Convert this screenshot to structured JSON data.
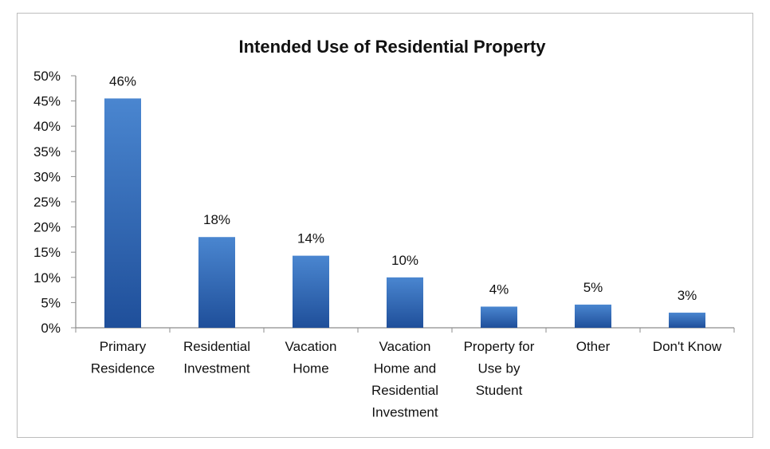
{
  "chart_data": {
    "type": "bar",
    "title": "Intended Use of Residential Property",
    "xlabel": "",
    "ylabel": "",
    "categories": [
      [
        "Primary",
        "Residence"
      ],
      [
        "Residential",
        "Investment"
      ],
      [
        "Vacation",
        "Home"
      ],
      [
        "Vacation",
        "Home and",
        "Residential",
        "Investment"
      ],
      [
        "Property for",
        "Use by",
        "Student"
      ],
      [
        "Other"
      ],
      [
        "Don't Know"
      ]
    ],
    "values": [
      45.5,
      18,
      14.3,
      10,
      4.2,
      4.6,
      3
    ],
    "data_labels": [
      "46%",
      "18%",
      "14%",
      "10%",
      "4%",
      "5%",
      "3%"
    ],
    "ylim": [
      0,
      50
    ],
    "yticks": [
      "0%",
      "5%",
      "10%",
      "15%",
      "20%",
      "25%",
      "30%",
      "35%",
      "40%",
      "45%",
      "50%"
    ],
    "grid": false,
    "legend": "none",
    "colors": {
      "bar_top": "#4a86d0",
      "bar_bottom": "#1f4f9a",
      "axis": "#8c8c8c"
    }
  }
}
